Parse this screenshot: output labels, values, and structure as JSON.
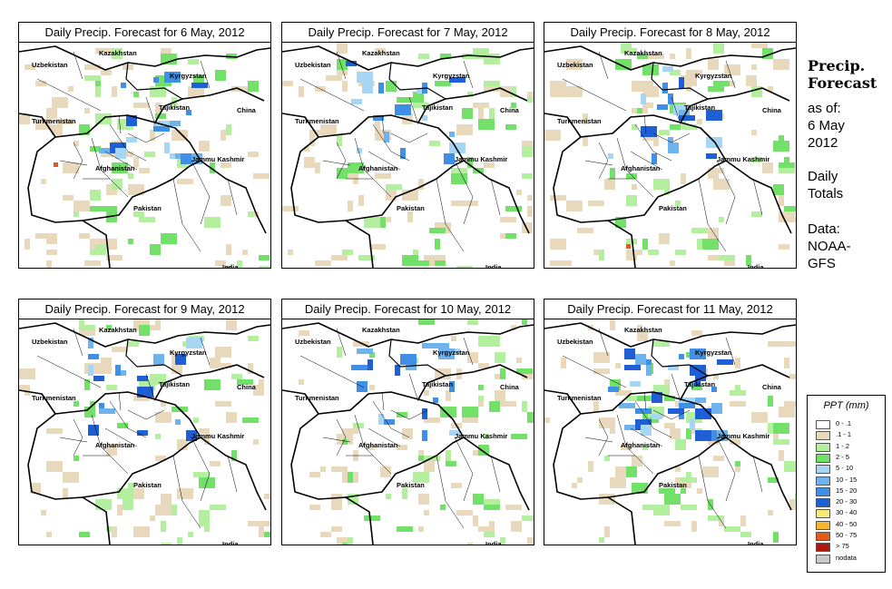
{
  "panels": [
    {
      "title": "Daily Precip. Forecast for  6 May, 2012"
    },
    {
      "title": "Daily Precip. Forecast for  7 May, 2012"
    },
    {
      "title": "Daily Precip. Forecast for  8 May, 2012"
    },
    {
      "title": "Daily Precip. Forecast for  9 May, 2012"
    },
    {
      "title": "Daily Precip. Forecast for  10 May, 2012"
    },
    {
      "title": "Daily Precip. Forecast for  11 May, 2012"
    }
  ],
  "map_labels": {
    "kazakhstan": "Kazakhstan",
    "uzbekistan": "Uzbekistan",
    "kyrgyzstan": "Kyrgyzstan",
    "tajikistan": "Tajikistan",
    "turkmenistan": "Turkmenistan",
    "china": "China",
    "afghanistan": "Afghanistan",
    "jammu_kashmir": "Jammu Kashmir",
    "pakistan": "Pakistan",
    "india": "India"
  },
  "side": {
    "heading_line1": "Precip.",
    "heading_line2": "Forecast",
    "asof_line1": "as of:",
    "asof_line2": "6 May",
    "asof_line3": "2012",
    "totals_line1": "Daily",
    "totals_line2": "Totals",
    "data_line1": "Data:",
    "data_line2": "NOAA-",
    "data_line3": "GFS"
  },
  "legend": {
    "title": "PPT (mm)",
    "items": [
      {
        "label": "0 - .1",
        "color": "#ffffff"
      },
      {
        "label": ".1 - 1",
        "color": "#e8d9bd"
      },
      {
        "label": "1 - 2",
        "color": "#b3ef9f"
      },
      {
        "label": "2 - 5",
        "color": "#73e06a"
      },
      {
        "label": "5 - 10",
        "color": "#a6d6f4"
      },
      {
        "label": "10 - 15",
        "color": "#6fb3ee"
      },
      {
        "label": "15 - 20",
        "color": "#3f8fe6"
      },
      {
        "label": "20 - 30",
        "color": "#1f5fd6"
      },
      {
        "label": "30 - 40",
        "color": "#f7e97a"
      },
      {
        "label": "40 - 50",
        "color": "#f6b52c"
      },
      {
        "label": "50 - 75",
        "color": "#e45a18"
      },
      {
        "label": "> 75",
        "color": "#b0170d"
      },
      {
        "label": "nodata",
        "color": "#c9c9c9"
      }
    ]
  }
}
